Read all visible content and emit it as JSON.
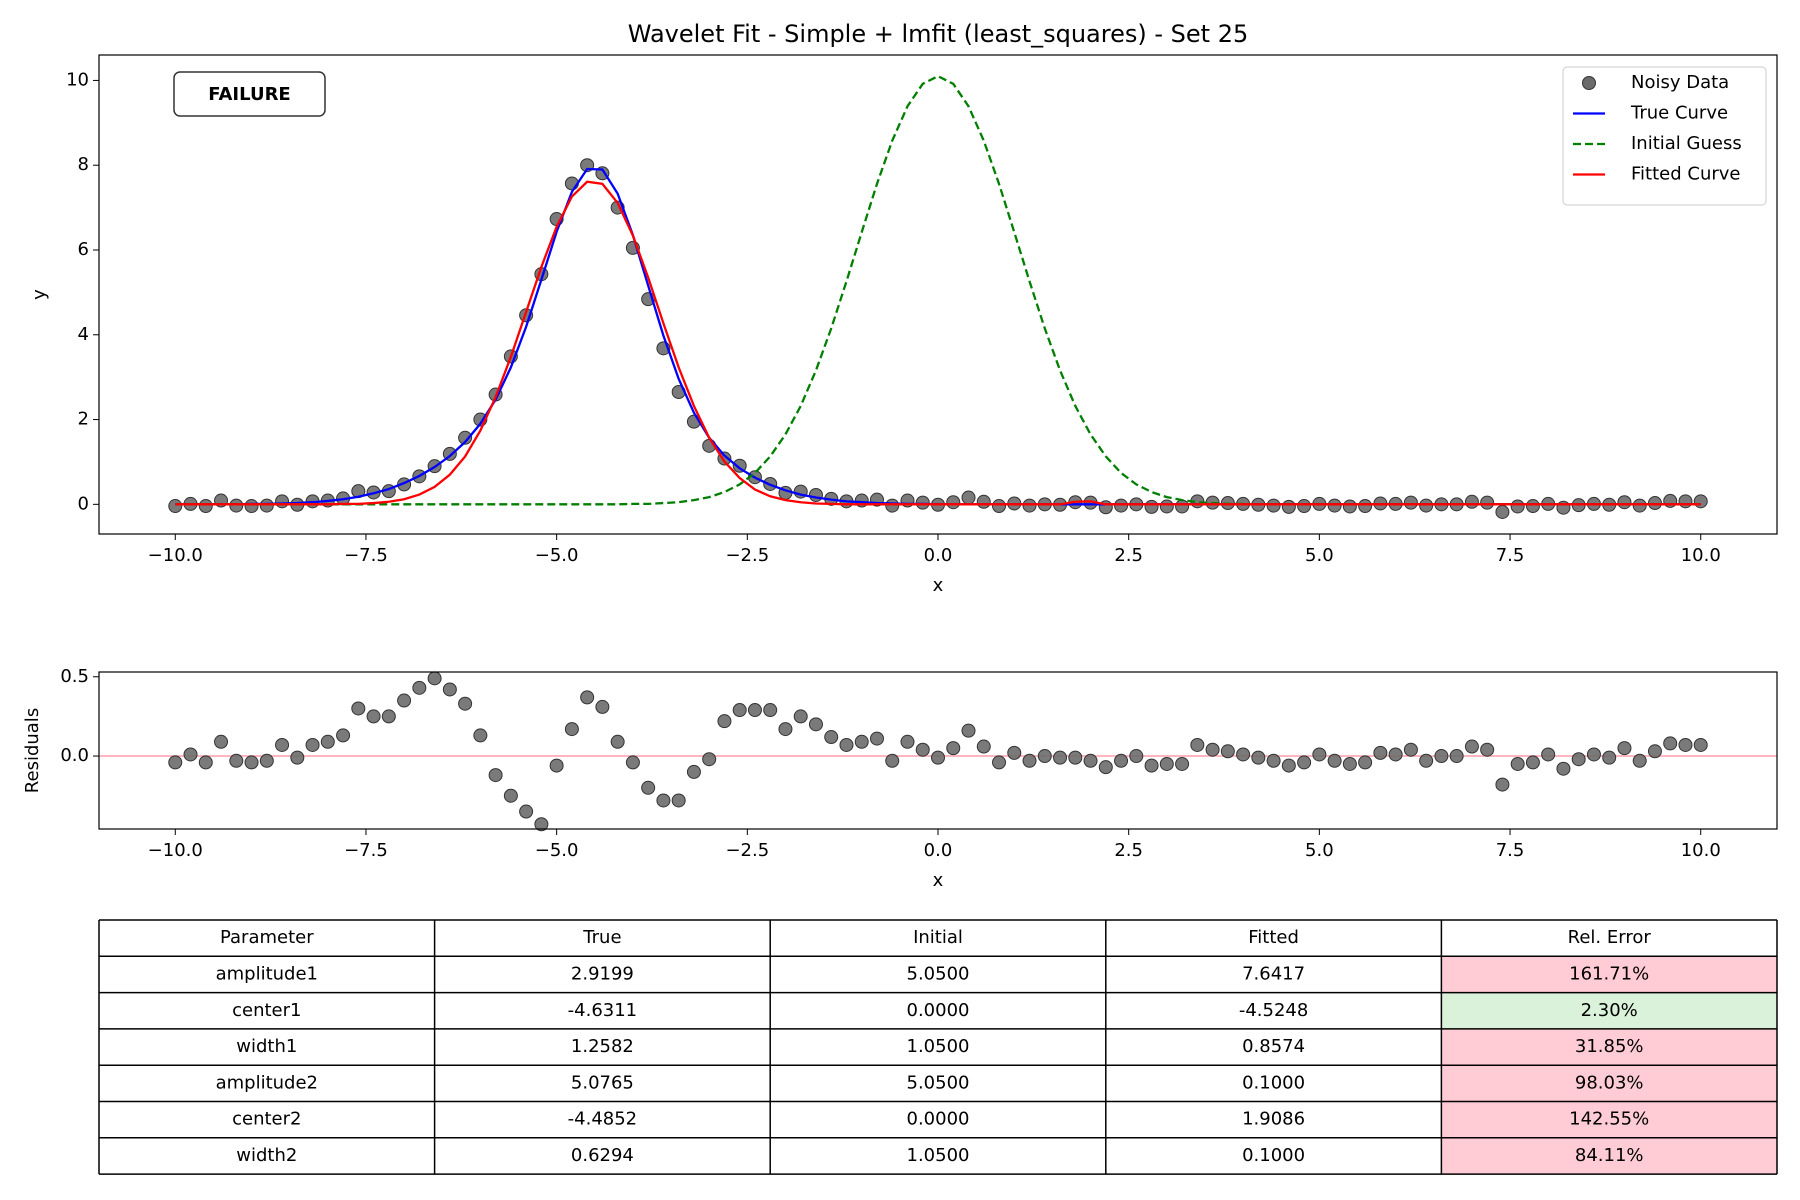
{
  "chart_data": [
    {
      "type": "line",
      "title": "Wavelet Fit - Simple + lmfit (least_squares) - Set 25",
      "xlabel": "x",
      "ylabel": "y",
      "x": [
        -10,
        -9.8,
        -9.6,
        -9.4,
        -9.2,
        -9,
        -8.8,
        -8.6,
        -8.4,
        -8.2,
        -8,
        -7.8,
        -7.6,
        -7.4,
        -7.2,
        -7,
        -6.8,
        -6.6,
        -6.4,
        -6.2,
        -6,
        -5.8,
        -5.6,
        -5.4,
        -5.2,
        -5,
        -4.8,
        -4.6,
        -4.4,
        -4.2,
        -4,
        -3.8,
        -3.6,
        -3.4,
        -3.2,
        -3,
        -2.8,
        -2.6,
        -2.4,
        -2.2,
        -2,
        -1.8,
        -1.6,
        -1.4,
        -1.2,
        -1,
        -0.8,
        -0.6,
        -0.4,
        -0.2,
        0,
        0.2,
        0.4,
        0.6,
        0.8,
        1,
        1.2,
        1.4,
        1.6,
        1.8,
        2,
        2.2,
        2.4,
        2.6,
        2.8,
        3,
        3.2,
        3.4,
        3.6,
        3.8,
        4,
        4.2,
        4.4,
        4.6,
        4.8,
        5,
        5.2,
        5.4,
        5.6,
        5.8,
        6,
        6.2,
        6.4,
        6.6,
        6.8,
        7,
        7.2,
        7.4,
        7.6,
        7.8,
        8,
        8.2,
        8.4,
        8.6,
        8.8,
        9,
        9.2,
        9.4,
        9.6,
        9.8,
        10
      ],
      "series": [
        {
          "name": "Noisy Data",
          "color": "#6b6b6b",
          "marker": "o",
          "values": [
            -0.04,
            0.01,
            -0.04,
            0.09,
            -0.03,
            -0.04,
            -0.03,
            0.07,
            -0.01,
            0.07,
            0.09,
            0.14,
            0.31,
            0.28,
            0.31,
            0.47,
            0.66,
            0.9,
            1.19,
            1.57,
            2.0,
            2.59,
            3.49,
            4.46,
            5.43,
            6.73,
            7.57,
            8.0,
            7.81,
            7.0,
            6.05,
            4.84,
            3.68,
            2.65,
            1.95,
            1.38,
            1.08,
            0.91,
            0.64,
            0.48,
            0.27,
            0.3,
            0.22,
            0.13,
            0.07,
            0.09,
            0.11,
            -0.03,
            0.09,
            0.04,
            -0.01,
            0.05,
            0.16,
            0.06,
            -0.04,
            0.02,
            -0.03,
            0.0,
            -0.01,
            0.05,
            0.04,
            -0.07,
            -0.03,
            0.0,
            -0.06,
            -0.05,
            -0.05,
            0.07,
            0.04,
            0.03,
            0.01,
            -0.01,
            -0.03,
            -0.06,
            -0.04,
            0.01,
            -0.03,
            -0.05,
            -0.04,
            0.02,
            0.01,
            0.04,
            -0.03,
            0.0,
            0.0,
            0.06,
            0.04,
            -0.18,
            -0.05,
            -0.04,
            0.01,
            -0.08,
            -0.02,
            0.01,
            -0.01,
            0.05,
            -0.03,
            0.03,
            0.08,
            0.07,
            0.07
          ]
        },
        {
          "name": "True Curve",
          "color": "#0000ff",
          "linestyle": "solid",
          "values": [
            0,
            0,
            0,
            0,
            0,
            0.01,
            0.01,
            0.02,
            0.03,
            0.05,
            0.08,
            0.12,
            0.18,
            0.26,
            0.36,
            0.5,
            0.67,
            0.88,
            1.14,
            1.47,
            1.9,
            2.47,
            3.23,
            4.19,
            5.3,
            6.43,
            7.37,
            7.91,
            7.9,
            7.33,
            6.35,
            5.16,
            3.98,
            2.96,
            2.16,
            1.57,
            1.15,
            0.85,
            0.63,
            0.46,
            0.33,
            0.23,
            0.16,
            0.11,
            0.07,
            0.05,
            0.03,
            0.02,
            0.01,
            0.01,
            0,
            0,
            0,
            0,
            0,
            0,
            0,
            0,
            0,
            0,
            0,
            0,
            0,
            0,
            0,
            0,
            0,
            0,
            0,
            0,
            0,
            0,
            0,
            0,
            0,
            0,
            0,
            0,
            0,
            0,
            0,
            0,
            0,
            0,
            0,
            0,
            0,
            0,
            0,
            0,
            0,
            0,
            0,
            0,
            0,
            0,
            0,
            0,
            0,
            0,
            0
          ]
        },
        {
          "name": "Initial Guess",
          "color": "#007f00",
          "linestyle": "dashed",
          "values": [
            0,
            0,
            0,
            0,
            0,
            0,
            0,
            0,
            0,
            0,
            0,
            0,
            0,
            0,
            0,
            0,
            0,
            0,
            0,
            0,
            0,
            0,
            0,
            0,
            0,
            0,
            0,
            0,
            0,
            0,
            0.01,
            0.01,
            0.03,
            0.05,
            0.1,
            0.17,
            0.29,
            0.47,
            0.74,
            1.13,
            1.65,
            2.32,
            3.16,
            4.15,
            5.26,
            6.42,
            7.56,
            8.58,
            9.39,
            9.92,
            10.1,
            9.92,
            9.39,
            8.58,
            7.56,
            6.42,
            5.26,
            4.15,
            3.16,
            2.32,
            1.65,
            1.13,
            0.74,
            0.47,
            0.29,
            0.17,
            0.1,
            0.05,
            0.03,
            0.01,
            0.01,
            0,
            0,
            0,
            0,
            0,
            0,
            0,
            0,
            0,
            0,
            0,
            0,
            0,
            0,
            0,
            0,
            0,
            0,
            0,
            0,
            0,
            0,
            0,
            0,
            0,
            0,
            0,
            0,
            0,
            0
          ]
        },
        {
          "name": "Fitted Curve",
          "color": "#ff0000",
          "linestyle": "solid",
          "values": [
            0,
            0,
            0,
            0,
            0,
            0,
            0,
            0,
            0,
            0,
            0,
            0.01,
            0.01,
            0.03,
            0.06,
            0.12,
            0.23,
            0.41,
            0.7,
            1.13,
            1.74,
            2.53,
            3.48,
            4.54,
            5.6,
            6.55,
            7.26,
            7.61,
            7.56,
            7.11,
            6.34,
            5.35,
            4.27,
            3.23,
            2.32,
            1.57,
            1.01,
            0.62,
            0.35,
            0.19,
            0.1,
            0.05,
            0.02,
            0.01,
            0,
            0,
            0,
            0,
            0,
            0,
            0,
            0,
            0,
            0,
            0,
            0,
            0,
            0,
            0,
            0.06,
            0.07,
            0,
            0,
            0,
            0,
            0,
            0,
            0,
            0,
            0,
            0,
            0,
            0,
            0,
            0,
            0,
            0,
            0,
            0,
            0,
            0,
            0,
            0,
            0,
            0,
            0,
            0,
            0,
            0,
            0,
            0,
            0,
            0,
            0,
            0,
            0,
            0,
            0,
            0,
            0,
            0
          ]
        }
      ],
      "xlim": [
        -11,
        11
      ],
      "ylim": [
        -0.7,
        10.6
      ],
      "xticks": [
        {
          "value": -10,
          "label": "−10.0"
        },
        {
          "value": -7.5,
          "label": "−7.5"
        },
        {
          "value": -5,
          "label": "−5.0"
        },
        {
          "value": -2.5,
          "label": "−2.5"
        },
        {
          "value": 0,
          "label": "0.0"
        },
        2.5,
        {
          "value": 5,
          "label": "5.0"
        },
        7.5,
        {
          "value": 10,
          "label": "10.0"
        }
      ],
      "yticks": [
        0,
        2,
        4,
        6,
        8,
        10
      ],
      "legend": "upper right",
      "annotation": {
        "text": "FAILURE",
        "color": "#ff0000"
      }
    },
    {
      "type": "scatter",
      "xlabel": "x",
      "ylabel": "Residuals",
      "color": "#6b6b6b",
      "x": [
        -10,
        -9.8,
        -9.6,
        -9.4,
        -9.2,
        -9,
        -8.8,
        -8.6,
        -8.4,
        -8.2,
        -8,
        -7.8,
        -7.6,
        -7.4,
        -7.2,
        -7,
        -6.8,
        -6.6,
        -6.4,
        -6.2,
        -6,
        -5.8,
        -5.6,
        -5.4,
        -5.2,
        -5,
        -4.8,
        -4.6,
        -4.4,
        -4.2,
        -4,
        -3.8,
        -3.6,
        -3.4,
        -3.2,
        -3,
        -2.8,
        -2.6,
        -2.4,
        -2.2,
        -2,
        -1.8,
        -1.6,
        -1.4,
        -1.2,
        -1,
        -0.8,
        -0.6,
        -0.4,
        -0.2,
        0,
        0.2,
        0.4,
        0.6,
        0.8,
        1,
        1.2,
        1.4,
        1.6,
        1.8,
        2,
        2.2,
        2.4,
        2.6,
        2.8,
        3,
        3.2,
        3.4,
        3.6,
        3.8,
        4,
        4.2,
        4.4,
        4.6,
        4.8,
        5,
        5.2,
        5.4,
        5.6,
        5.8,
        6,
        6.2,
        6.4,
        6.6,
        6.8,
        7,
        7.2,
        7.4,
        7.6,
        7.8,
        8,
        8.2,
        8.4,
        8.6,
        8.8,
        9,
        9.2,
        9.4,
        9.6,
        9.8,
        10
      ],
      "values": [
        -0.04,
        0.01,
        -0.04,
        0.09,
        -0.03,
        -0.04,
        -0.03,
        0.07,
        -0.01,
        0.07,
        0.09,
        0.13,
        0.3,
        0.25,
        0.25,
        0.35,
        0.43,
        0.49,
        0.42,
        0.33,
        0.13,
        -0.12,
        -0.25,
        -0.35,
        -0.43,
        -0.06,
        0.17,
        0.37,
        0.31,
        0.09,
        -0.04,
        -0.2,
        -0.28,
        -0.28,
        -0.1,
        -0.02,
        0.22,
        0.29,
        0.29,
        0.29,
        0.17,
        0.25,
        0.2,
        0.12,
        0.07,
        0.09,
        0.11,
        -0.03,
        0.09,
        0.04,
        -0.01,
        0.05,
        0.16,
        0.06,
        -0.04,
        0.02,
        -0.03,
        0.0,
        -0.01,
        -0.01,
        -0.03,
        -0.07,
        -0.03,
        0.0,
        -0.06,
        -0.05,
        -0.05,
        0.07,
        0.04,
        0.03,
        0.01,
        -0.01,
        -0.03,
        -0.06,
        -0.04,
        0.01,
        -0.03,
        -0.05,
        -0.04,
        0.02,
        0.01,
        0.04,
        -0.03,
        0.0,
        0.0,
        0.06,
        0.04,
        -0.18,
        -0.05,
        -0.04,
        0.01,
        -0.08,
        -0.02,
        0.01,
        -0.01,
        0.05,
        -0.03,
        0.03,
        0.08,
        0.07,
        0.07
      ],
      "xlim": [
        -11,
        11
      ],
      "ylim": [
        -0.46,
        0.53
      ],
      "xticks": [
        {
          "value": -10,
          "label": "−10.0"
        },
        {
          "value": -7.5,
          "label": "−7.5"
        },
        {
          "value": -5,
          "label": "−5.0"
        },
        {
          "value": -2.5,
          "label": "−2.5"
        },
        {
          "value": 0,
          "label": "0.0"
        },
        2.5,
        {
          "value": 5,
          "label": "5.0"
        },
        7.5,
        {
          "value": 10,
          "label": "10.0"
        }
      ],
      "yticks": [
        {
          "value": 0,
          "label": "0.0"
        },
        0.5
      ],
      "hline": {
        "value": 0,
        "color": "#ffb6c1"
      }
    }
  ],
  "table": {
    "columns": [
      "Parameter",
      "True",
      "Initial",
      "Fitted",
      "Rel. Error"
    ],
    "rows": [
      [
        "amplitude1",
        "2.9199",
        "5.0500",
        "7.6417",
        "161.71%"
      ],
      [
        "center1",
        "-4.6311",
        "0.0000",
        "-4.5248",
        "2.30%"
      ],
      [
        "width1",
        "1.2582",
        "1.0500",
        "0.8574",
        "31.85%"
      ],
      [
        "amplitude2",
        "5.0765",
        "5.0500",
        "0.1000",
        "98.03%"
      ],
      [
        "center2",
        "-4.4852",
        "0.0000",
        "1.9086",
        "142.55%"
      ],
      [
        "width2",
        "0.6294",
        "1.0500",
        "0.1000",
        "84.11%"
      ]
    ],
    "error_colors": [
      "#ffccd5",
      "#d9f2d9",
      "#ffccd5",
      "#ffccd5",
      "#ffccd5",
      "#ffccd5"
    ]
  }
}
